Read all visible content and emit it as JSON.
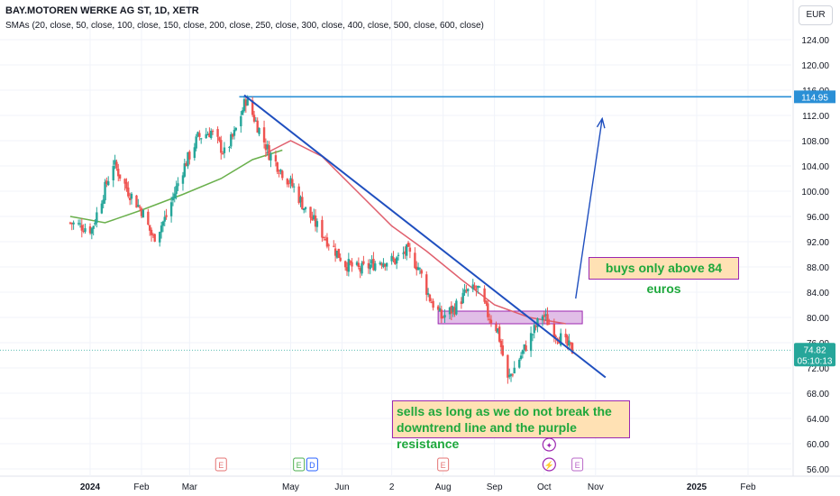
{
  "header": {
    "title": "BAY.MOTOREN WERKE AG ST, 1D, XETR",
    "indicators": "SMAs (20, close, 50, close, 100, close, 150, close, 200, close, 250, close, 300, close, 400, close, 500, close, 600, close)",
    "currency": "EUR"
  },
  "annotations": {
    "buy_note": "buys only above 84 euros",
    "sell_note": "sells as long as we do not break the downtrend line and the purple resistance"
  },
  "price_labels": {
    "resistance_level": "114.95",
    "last_price": "74.82",
    "countdown": "05:10:13"
  },
  "event_markers": [
    "E",
    "E",
    "D",
    "E",
    "E"
  ],
  "colors": {
    "up": "#26a69a",
    "down": "#ef5350",
    "sma_red": "#e0606e",
    "sma_green": "#6ab04c",
    "trend": "#1f4fbf",
    "resistance_line": "#2a8fd6",
    "zone_fill": "#e1bee7",
    "zone_border": "#9c27b0",
    "last_price_bg": "#26a69a"
  },
  "chart_data": {
    "type": "candlestick",
    "x_ticks": [
      "2024",
      "Feb",
      "Mar",
      "May",
      "Jun",
      "2",
      "Aug",
      "Sep",
      "Oct",
      "Nov",
      "2025",
      "Feb"
    ],
    "y_ticks": [
      56.0,
      60.0,
      64.0,
      68.0,
      72.0,
      76.0,
      80.0,
      84.0,
      88.0,
      92.0,
      96.0,
      100.0,
      104.0,
      108.0,
      112.0,
      116.0,
      120.0,
      124.0
    ],
    "ylim": [
      55,
      127
    ],
    "resistance_level": 114.95,
    "last_price": 74.82,
    "close_path": [
      {
        "date": "2023-12-20",
        "close": 95.0
      },
      {
        "date": "2024-01-02",
        "close": 94.0
      },
      {
        "date": "2024-01-15",
        "close": 104.5
      },
      {
        "date": "2024-01-24",
        "close": 100.0
      },
      {
        "date": "2024-02-01",
        "close": 97.0
      },
      {
        "date": "2024-02-08",
        "close": 92.5
      },
      {
        "date": "2024-02-16",
        "close": 96.0
      },
      {
        "date": "2024-02-26",
        "close": 103.5
      },
      {
        "date": "2024-03-06",
        "close": 108.5
      },
      {
        "date": "2024-03-14",
        "close": 109.5
      },
      {
        "date": "2024-03-22",
        "close": 106.0
      },
      {
        "date": "2024-03-28",
        "close": 109.0
      },
      {
        "date": "2024-04-04",
        "close": 114.5
      },
      {
        "date": "2024-04-10",
        "close": 111.0
      },
      {
        "date": "2024-04-18",
        "close": 106.0
      },
      {
        "date": "2024-04-26",
        "close": 103.0
      },
      {
        "date": "2024-05-03",
        "close": 100.5
      },
      {
        "date": "2024-05-10",
        "close": 97.0
      },
      {
        "date": "2024-05-21",
        "close": 93.0
      },
      {
        "date": "2024-06-03",
        "close": 88.5
      },
      {
        "date": "2024-06-12",
        "close": 87.5
      },
      {
        "date": "2024-06-24",
        "close": 89.0
      },
      {
        "date": "2024-07-03",
        "close": 89.0
      },
      {
        "date": "2024-07-10",
        "close": 90.5
      },
      {
        "date": "2024-07-17",
        "close": 88.0
      },
      {
        "date": "2024-07-24",
        "close": 83.0
      },
      {
        "date": "2024-07-31",
        "close": 80.0
      },
      {
        "date": "2024-08-08",
        "close": 81.5
      },
      {
        "date": "2024-08-15",
        "close": 84.0
      },
      {
        "date": "2024-08-22",
        "close": 84.5
      },
      {
        "date": "2024-08-28",
        "close": 80.5
      },
      {
        "date": "2024-09-03",
        "close": 78.0
      },
      {
        "date": "2024-09-09",
        "close": 70.0
      },
      {
        "date": "2024-09-16",
        "close": 73.5
      },
      {
        "date": "2024-09-24",
        "close": 77.5
      },
      {
        "date": "2024-09-30",
        "close": 80.5
      },
      {
        "date": "2024-10-08",
        "close": 77.5
      },
      {
        "date": "2024-10-15",
        "close": 75.5
      },
      {
        "date": "2024-10-18",
        "close": 74.82
      }
    ],
    "sma_red": [
      {
        "date": "2024-04-16",
        "value": 106.0
      },
      {
        "date": "2024-05-01",
        "value": 108.0
      },
      {
        "date": "2024-05-20",
        "value": 105.5
      },
      {
        "date": "2024-06-10",
        "value": 100.0
      },
      {
        "date": "2024-07-01",
        "value": 94.5
      },
      {
        "date": "2024-07-22",
        "value": 90.5
      },
      {
        "date": "2024-08-12",
        "value": 86.0
      },
      {
        "date": "2024-09-01",
        "value": 82.0
      },
      {
        "date": "2024-09-22",
        "value": 80.0
      },
      {
        "date": "2024-10-14",
        "value": 79.0
      }
    ],
    "sma_green": [
      {
        "date": "2023-12-20",
        "value": 96.0
      },
      {
        "date": "2024-01-10",
        "value": 95.0
      },
      {
        "date": "2024-02-01",
        "value": 97.0
      },
      {
        "date": "2024-02-26",
        "value": 99.5
      },
      {
        "date": "2024-03-20",
        "value": 102.0
      },
      {
        "date": "2024-04-08",
        "value": 105.0
      },
      {
        "date": "2024-04-26",
        "value": 106.5
      }
    ],
    "downtrend_line": [
      {
        "date": "2024-04-03",
        "value": 115.2
      },
      {
        "date": "2024-11-07",
        "value": 70.5
      }
    ],
    "resistance_zone": {
      "from": "2024-07-29",
      "to": "2024-10-24",
      "low": 79.0,
      "high": 81.0
    },
    "projection_arrow": [
      {
        "date": "2024-10-20",
        "value": 83.0
      },
      {
        "date": "2024-11-05",
        "value": 111.5
      }
    ]
  }
}
